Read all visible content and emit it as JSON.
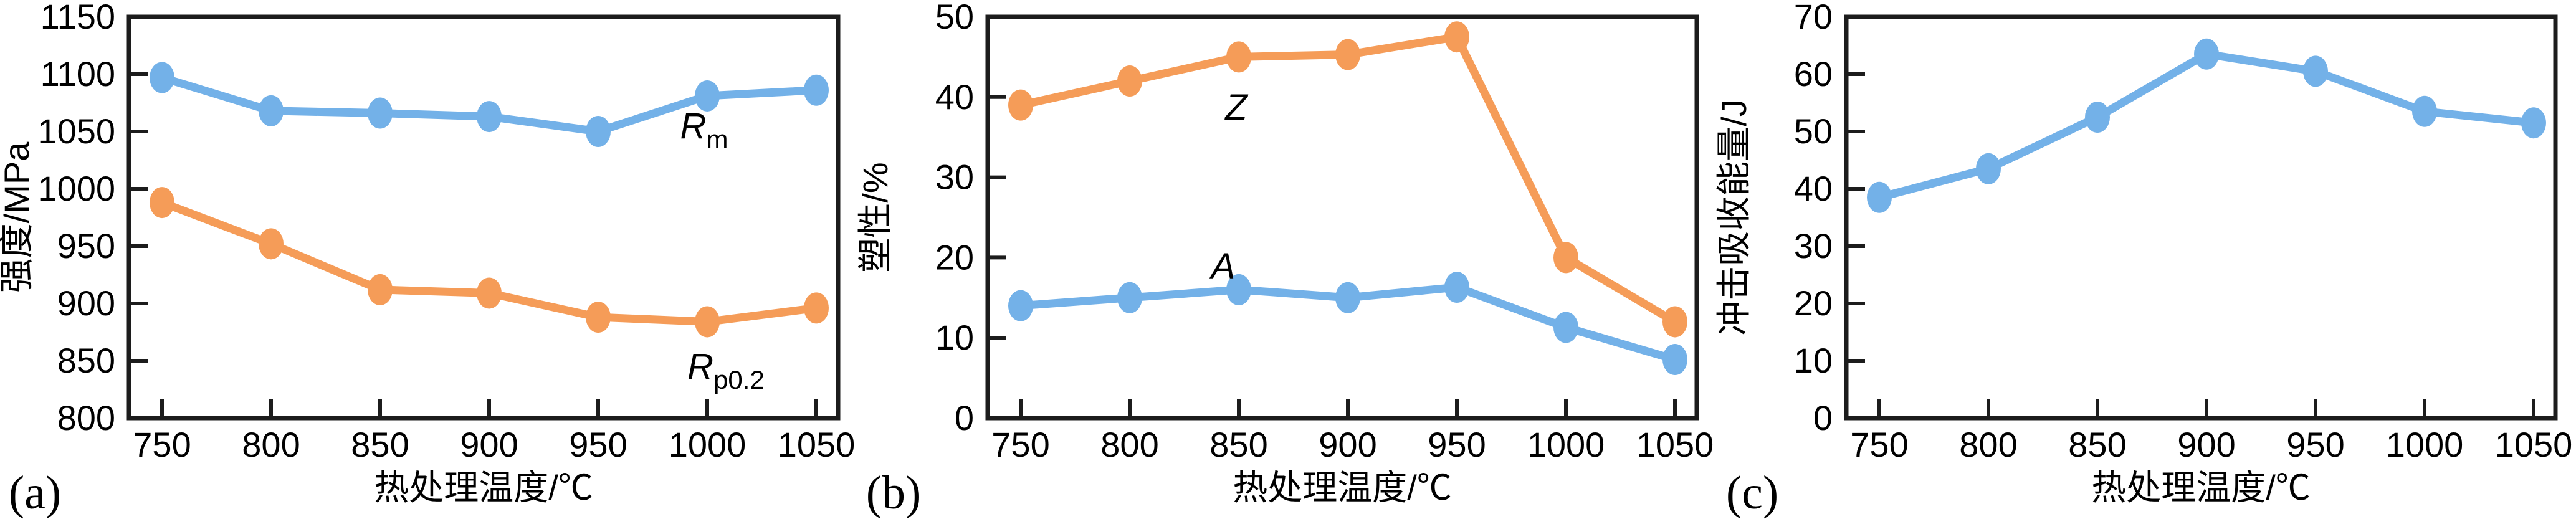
{
  "figure": {
    "background": "#ffffff",
    "axis_color": "#1c1c1c",
    "text_color": "#000000"
  },
  "palette": {
    "blue": "#73B1E8",
    "orange": "#F59C58"
  },
  "chart_data": [
    {
      "type": "line",
      "panel_label": "(a)",
      "ylabel": "强度/MPa",
      "xlabel": "热处理温度/℃",
      "x": [
        750,
        800,
        850,
        900,
        950,
        1000,
        1050
      ],
      "ylim": [
        800,
        1150
      ],
      "yticks": [
        800,
        850,
        900,
        950,
        1000,
        1050,
        1100,
        1150
      ],
      "grid": false,
      "legend_position": "inline-annotations",
      "series": [
        {
          "name": "Rm",
          "color": "blue",
          "values": [
            1097,
            1068,
            1066,
            1063,
            1050,
            1081,
            1086
          ],
          "annotation": {
            "main": "R",
            "sub": "m",
            "x": 1130,
            "y": 222
          }
        },
        {
          "name": "Rp0.2",
          "color": "orange",
          "values": [
            988,
            952,
            912,
            909,
            888,
            884,
            896
          ],
          "annotation": {
            "main": "R",
            "sub": "p0.2",
            "x": 1165,
            "y": 608
          }
        }
      ]
    },
    {
      "type": "line",
      "panel_label": "(b)",
      "ylabel": "塑性/%",
      "xlabel": "热处理温度/℃",
      "x": [
        750,
        800,
        850,
        900,
        950,
        1000,
        1050
      ],
      "ylim": [
        0,
        50
      ],
      "yticks": [
        0,
        10,
        20,
        30,
        40,
        50
      ],
      "grid": false,
      "legend_position": "inline-annotations",
      "series": [
        {
          "name": "Z",
          "color": "orange",
          "values": [
            39,
            42,
            45,
            45.3,
            47.5,
            20,
            12
          ],
          "annotation": {
            "main": "Z",
            "sub": "",
            "x": 606,
            "y": 192
          }
        },
        {
          "name": "A",
          "color": "blue",
          "values": [
            14,
            15,
            16,
            15,
            16.3,
            11.3,
            7.3
          ],
          "annotation": {
            "main": "A",
            "sub": "",
            "x": 585,
            "y": 447
          }
        }
      ]
    },
    {
      "type": "line",
      "panel_label": "(c)",
      "ylabel": "冲击吸收能量/J",
      "xlabel": "热处理温度/℃",
      "x": [
        750,
        800,
        850,
        900,
        950,
        1000,
        1050
      ],
      "ylim": [
        0,
        70
      ],
      "yticks": [
        0,
        10,
        20,
        30,
        40,
        50,
        60,
        70
      ],
      "grid": false,
      "legend_position": "none",
      "series": [
        {
          "name": "impact-absorbed-energy",
          "color": "blue",
          "values": [
            38.5,
            43.5,
            52.5,
            63.5,
            60.5,
            53.5,
            51.5
          ],
          "annotation": null
        }
      ]
    }
  ]
}
